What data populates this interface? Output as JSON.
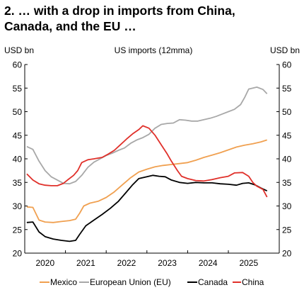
{
  "title_line1": "2. … with a drop in imports from China,",
  "title_line2": "Canada, and the EU …",
  "chart_data": {
    "type": "line",
    "subtitle": "US imports (12mma)",
    "ylabel_left": "USD bn",
    "ylabel_right": "USD bn",
    "ylim": [
      20,
      60
    ],
    "yticks": [
      20,
      25,
      30,
      35,
      40,
      45,
      50,
      55,
      60
    ],
    "xlim": [
      2019.5,
      2025.75
    ],
    "xtick_labels": [
      "2020",
      "2021",
      "2022",
      "2023",
      "2024",
      "2025"
    ],
    "xtick_positions": [
      2020.0,
      2021.0,
      2022.0,
      2023.0,
      2024.0,
      2025.0
    ],
    "grid": false,
    "legend_position": "bottom",
    "series": [
      {
        "name": "Mexico",
        "color": "#f0a050",
        "points": [
          [
            2019.55,
            29.8
          ],
          [
            2019.7,
            29.7
          ],
          [
            2019.85,
            27.0
          ],
          [
            2020.0,
            26.6
          ],
          [
            2020.2,
            26.5
          ],
          [
            2020.4,
            26.7
          ],
          [
            2020.6,
            26.9
          ],
          [
            2020.75,
            27.2
          ],
          [
            2020.85,
            28.5
          ],
          [
            2020.95,
            30.0
          ],
          [
            2021.1,
            30.6
          ],
          [
            2021.3,
            31.0
          ],
          [
            2021.5,
            31.8
          ],
          [
            2021.7,
            33.0
          ],
          [
            2021.9,
            34.5
          ],
          [
            2022.1,
            36.0
          ],
          [
            2022.3,
            37.2
          ],
          [
            2022.5,
            37.8
          ],
          [
            2022.7,
            38.3
          ],
          [
            2022.9,
            38.6
          ],
          [
            2023.1,
            38.8
          ],
          [
            2023.3,
            39.0
          ],
          [
            2023.5,
            39.2
          ],
          [
            2023.7,
            39.7
          ],
          [
            2023.9,
            40.3
          ],
          [
            2024.1,
            40.8
          ],
          [
            2024.3,
            41.3
          ],
          [
            2024.5,
            41.9
          ],
          [
            2024.7,
            42.5
          ],
          [
            2024.9,
            42.9
          ],
          [
            2025.1,
            43.2
          ],
          [
            2025.3,
            43.6
          ],
          [
            2025.45,
            44.0
          ]
        ]
      },
      {
        "name": "European Union (EU)",
        "color": "#a8a8a8",
        "points": [
          [
            2019.55,
            42.6
          ],
          [
            2019.7,
            42.0
          ],
          [
            2019.85,
            39.5
          ],
          [
            2020.0,
            37.5
          ],
          [
            2020.15,
            36.2
          ],
          [
            2020.3,
            35.5
          ],
          [
            2020.45,
            34.8
          ],
          [
            2020.6,
            34.7
          ],
          [
            2020.75,
            35.2
          ],
          [
            2020.9,
            36.5
          ],
          [
            2021.05,
            38.2
          ],
          [
            2021.2,
            39.3
          ],
          [
            2021.35,
            40.0
          ],
          [
            2021.5,
            40.7
          ],
          [
            2021.65,
            41.2
          ],
          [
            2021.8,
            41.8
          ],
          [
            2021.95,
            42.3
          ],
          [
            2022.1,
            43.3
          ],
          [
            2022.25,
            44.0
          ],
          [
            2022.4,
            44.5
          ],
          [
            2022.55,
            45.2
          ],
          [
            2022.7,
            46.5
          ],
          [
            2022.85,
            47.3
          ],
          [
            2023.0,
            47.5
          ],
          [
            2023.15,
            47.6
          ],
          [
            2023.3,
            48.3
          ],
          [
            2023.45,
            48.2
          ],
          [
            2023.6,
            48.0
          ],
          [
            2023.75,
            48.0
          ],
          [
            2023.9,
            48.3
          ],
          [
            2024.05,
            48.6
          ],
          [
            2024.2,
            49.0
          ],
          [
            2024.35,
            49.5
          ],
          [
            2024.5,
            50.0
          ],
          [
            2024.65,
            50.5
          ],
          [
            2024.8,
            51.5
          ],
          [
            2024.9,
            53.0
          ],
          [
            2025.0,
            54.8
          ],
          [
            2025.1,
            55.0
          ],
          [
            2025.2,
            55.2
          ],
          [
            2025.35,
            54.7
          ],
          [
            2025.45,
            53.8
          ]
        ]
      },
      {
        "name": "Canada",
        "color": "#000000",
        "points": [
          [
            2019.55,
            26.5
          ],
          [
            2019.7,
            26.6
          ],
          [
            2019.85,
            24.5
          ],
          [
            2020.0,
            23.5
          ],
          [
            2020.2,
            23.0
          ],
          [
            2020.4,
            22.7
          ],
          [
            2020.6,
            22.5
          ],
          [
            2020.75,
            22.7
          ],
          [
            2020.85,
            24.0
          ],
          [
            2021.0,
            25.8
          ],
          [
            2021.2,
            27.0
          ],
          [
            2021.4,
            28.2
          ],
          [
            2021.6,
            29.5
          ],
          [
            2021.8,
            31.0
          ],
          [
            2022.0,
            33.0
          ],
          [
            2022.15,
            34.5
          ],
          [
            2022.3,
            35.8
          ],
          [
            2022.5,
            36.2
          ],
          [
            2022.65,
            36.5
          ],
          [
            2022.8,
            36.3
          ],
          [
            2022.95,
            36.2
          ],
          [
            2023.1,
            35.5
          ],
          [
            2023.3,
            35.0
          ],
          [
            2023.5,
            34.8
          ],
          [
            2023.7,
            35.0
          ],
          [
            2023.9,
            34.9
          ],
          [
            2024.1,
            34.9
          ],
          [
            2024.3,
            34.7
          ],
          [
            2024.5,
            34.6
          ],
          [
            2024.7,
            34.4
          ],
          [
            2024.85,
            34.8
          ],
          [
            2025.0,
            34.9
          ],
          [
            2025.15,
            34.5
          ],
          [
            2025.3,
            33.8
          ],
          [
            2025.45,
            33.2
          ]
        ]
      },
      {
        "name": "China",
        "color": "#e0302a",
        "points": [
          [
            2019.55,
            36.8
          ],
          [
            2019.7,
            35.5
          ],
          [
            2019.85,
            34.7
          ],
          [
            2020.0,
            34.4
          ],
          [
            2020.15,
            34.3
          ],
          [
            2020.3,
            34.3
          ],
          [
            2020.45,
            34.8
          ],
          [
            2020.55,
            35.5
          ],
          [
            2020.7,
            36.5
          ],
          [
            2020.8,
            37.5
          ],
          [
            2020.9,
            39.2
          ],
          [
            2021.05,
            39.8
          ],
          [
            2021.2,
            40.0
          ],
          [
            2021.4,
            40.3
          ],
          [
            2021.55,
            41.0
          ],
          [
            2021.7,
            41.8
          ],
          [
            2021.85,
            43.0
          ],
          [
            2022.0,
            44.2
          ],
          [
            2022.15,
            45.3
          ],
          [
            2022.3,
            46.2
          ],
          [
            2022.4,
            47.0
          ],
          [
            2022.55,
            46.5
          ],
          [
            2022.7,
            45.0
          ],
          [
            2022.85,
            43.0
          ],
          [
            2023.0,
            41.0
          ],
          [
            2023.1,
            39.5
          ],
          [
            2023.25,
            37.5
          ],
          [
            2023.35,
            36.3
          ],
          [
            2023.5,
            35.8
          ],
          [
            2023.7,
            35.4
          ],
          [
            2023.9,
            35.3
          ],
          [
            2024.1,
            35.6
          ],
          [
            2024.3,
            36.0
          ],
          [
            2024.5,
            36.3
          ],
          [
            2024.65,
            37.0
          ],
          [
            2024.85,
            37.1
          ],
          [
            2025.0,
            36.3
          ],
          [
            2025.1,
            35.0
          ],
          [
            2025.2,
            34.2
          ],
          [
            2025.35,
            33.5
          ],
          [
            2025.45,
            31.9
          ]
        ]
      }
    ]
  }
}
